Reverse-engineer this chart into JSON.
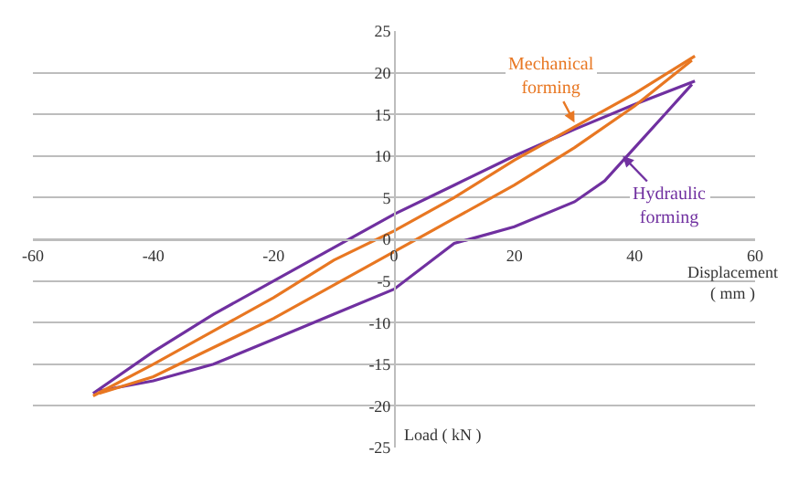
{
  "chart_data": {
    "type": "line",
    "xlabel": "Displacement\n( mm )",
    "ylabel": "Load ( kN )",
    "xlim": [
      -60,
      60
    ],
    "xticks": [
      -60,
      -40,
      -20,
      0,
      20,
      40,
      60
    ],
    "ylim": [
      -25,
      25
    ],
    "yticks": [
      -25,
      -20,
      -15,
      -10,
      -5,
      0,
      5,
      10,
      15,
      20,
      25
    ],
    "grid": "y",
    "marker": "none",
    "line_style": "solid",
    "series": [
      {
        "color": "#7030a0",
        "x": [
          -50,
          -40,
          -30,
          -20,
          -10,
          0,
          10,
          20,
          30,
          40,
          50
        ],
        "values": [
          -18.5,
          -13.5,
          -9,
          -5,
          -1,
          3,
          6.5,
          10,
          13.2,
          16.2,
          19
        ]
      },
      {
        "color": "#7030a0",
        "x": [
          -49,
          -40,
          -30,
          -20,
          -10,
          0,
          10,
          20,
          30,
          35,
          40,
          45,
          49.5
        ],
        "values": [
          -18.2,
          -17,
          -15,
          -12,
          -9,
          -6,
          -0.5,
          1.5,
          4.5,
          7,
          11,
          15,
          18.6
        ]
      },
      {
        "color": "#e87722",
        "x": [
          -50,
          -40,
          -30,
          -20,
          -10,
          0,
          10,
          20,
          30,
          40,
          50
        ],
        "values": [
          -18.8,
          -15,
          -11,
          -7,
          -2.5,
          1,
          5,
          9.5,
          13.5,
          17.5,
          22
        ]
      },
      {
        "color": "#e87722",
        "x": [
          -49,
          -40,
          -30,
          -20,
          -10,
          0,
          10,
          20,
          30,
          40,
          49.5
        ],
        "values": [
          -18.5,
          -16.5,
          -13,
          -9.5,
          -5.5,
          -1.5,
          2.5,
          6.5,
          11,
          16,
          21.5
        ]
      }
    ],
    "annotations": [
      {
        "text": "Mechanical\nforming",
        "x": 30,
        "y": 14
      },
      {
        "text": "Hydraulic\nforming",
        "x": 38,
        "y": 10
      }
    ]
  }
}
